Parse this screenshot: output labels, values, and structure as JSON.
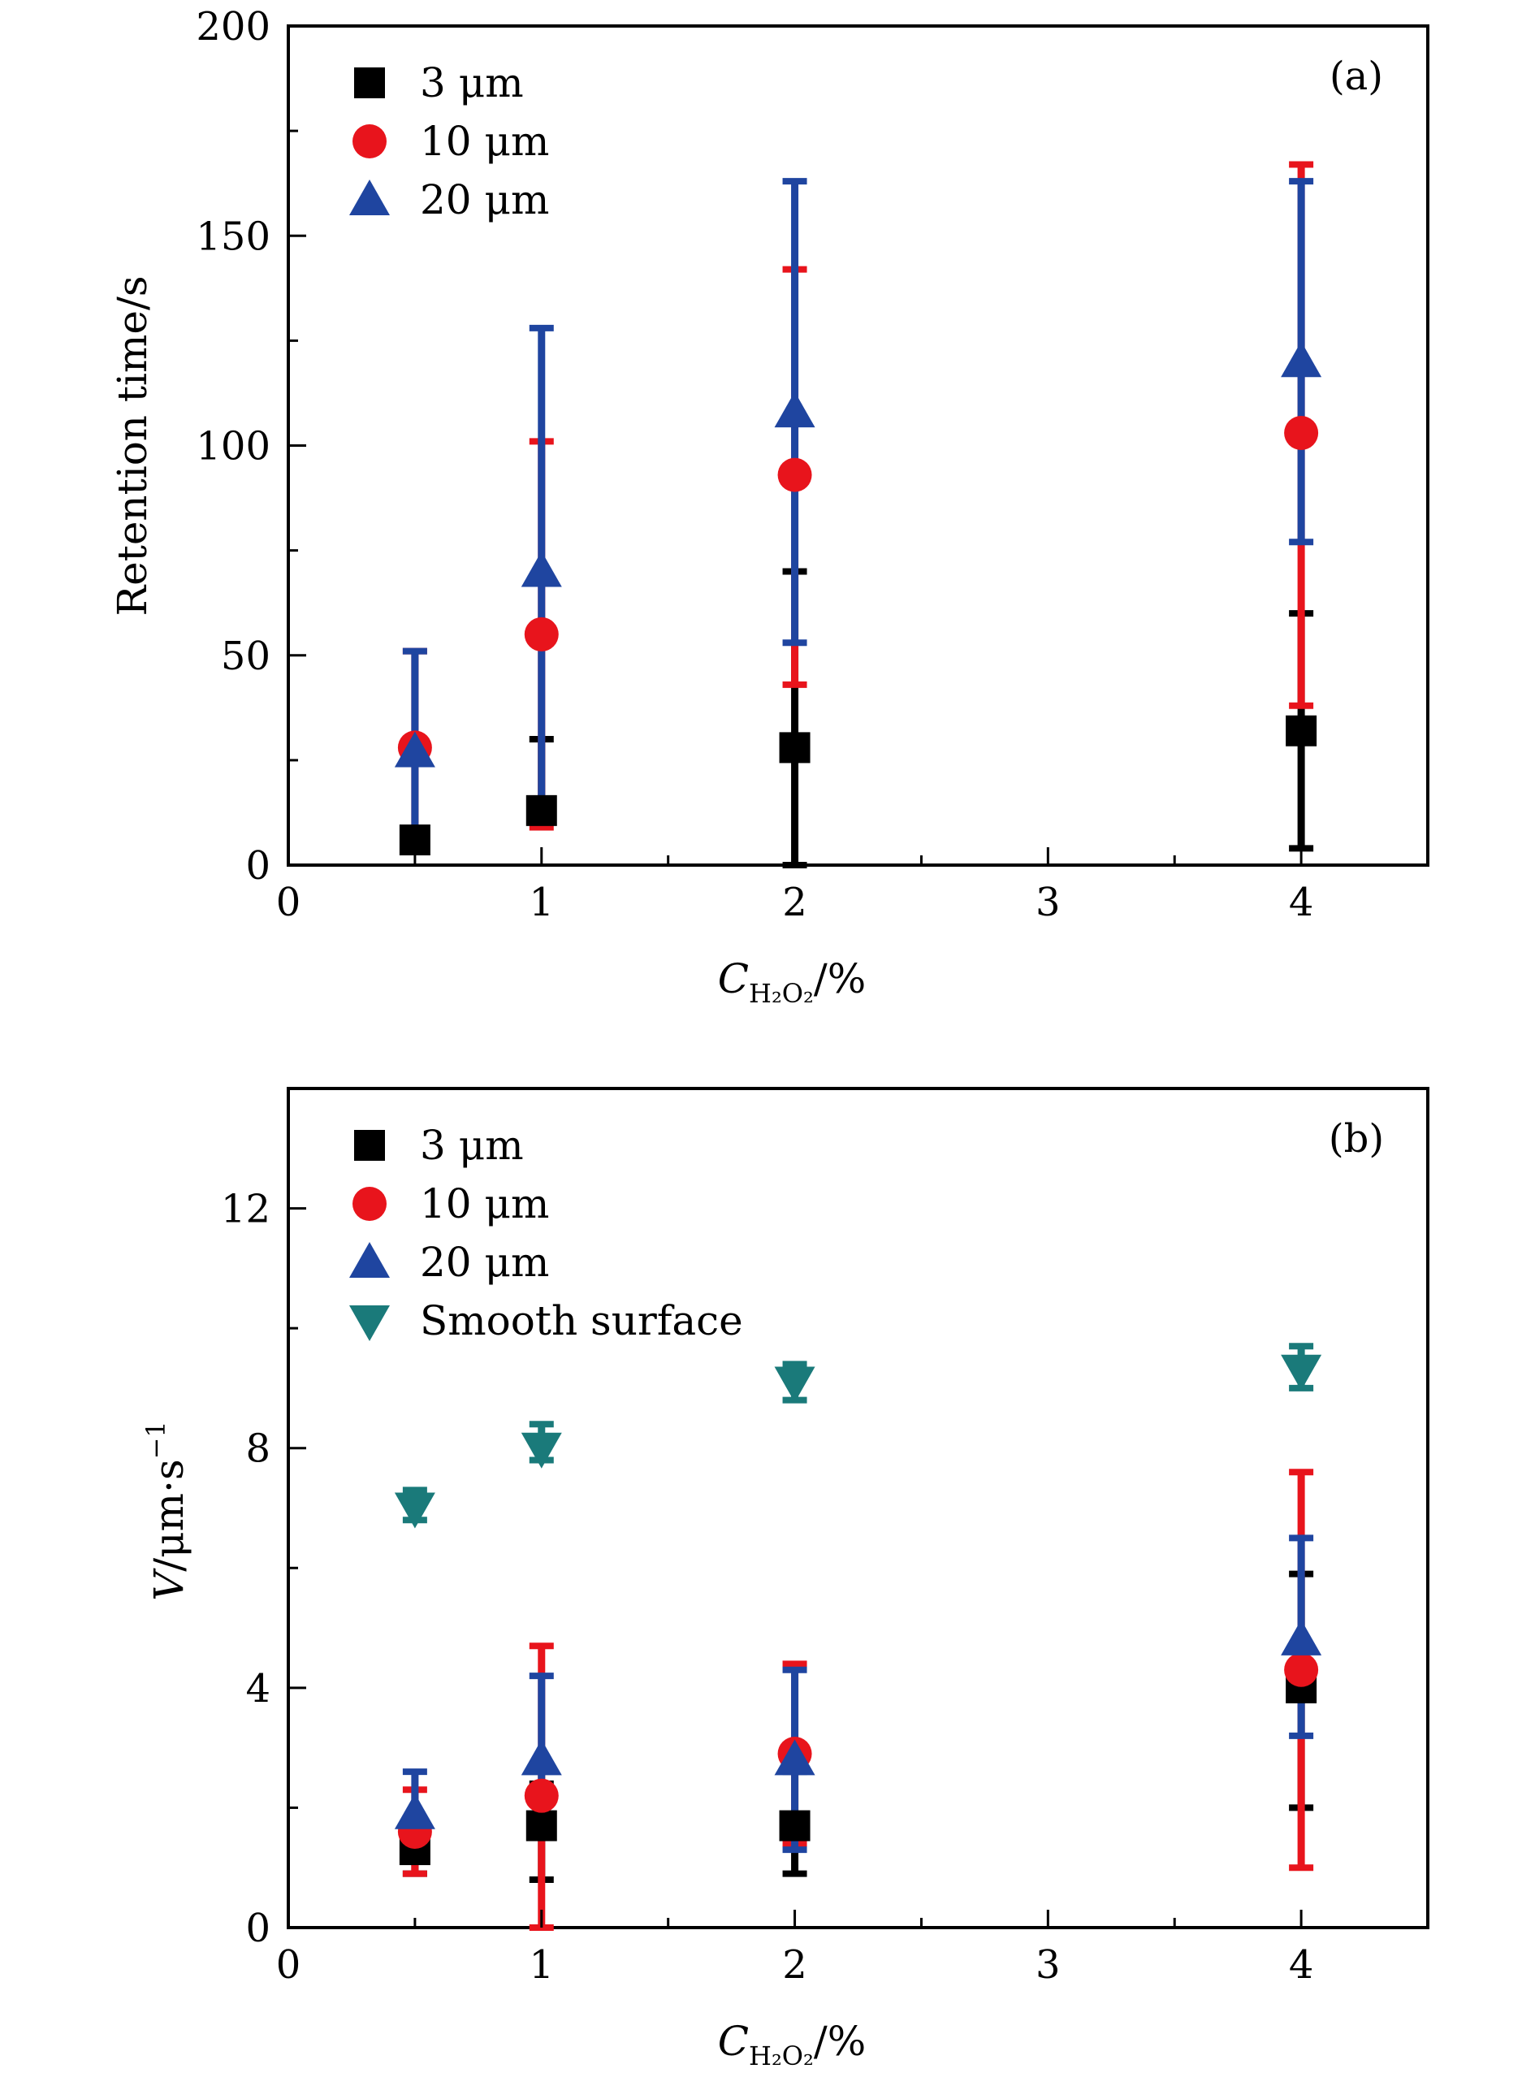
{
  "chart_data": [
    {
      "type": "scatter",
      "panel_label": "(a)",
      "ylabel": "Retention time/s",
      "xlabel_var": "C",
      "xlabel_sub": "H₂O₂",
      "xlabel_unit": "/%",
      "xlim": [
        0,
        4.5
      ],
      "ylim": [
        0,
        200
      ],
      "xticks": [
        0,
        1,
        2,
        3,
        4
      ],
      "yticks": [
        0,
        50,
        100,
        150,
        200
      ],
      "legend_position": "top-left",
      "grid": false,
      "series": [
        {
          "name": "3 μm",
          "marker": "square",
          "color": "#000000",
          "x": [
            0.5,
            1,
            2,
            4
          ],
          "y": [
            6,
            13,
            28,
            32
          ],
          "err_low": [
            4,
            11,
            0,
            4
          ],
          "err_high": [
            8,
            30,
            70,
            60
          ]
        },
        {
          "name": "10 μm",
          "marker": "circle",
          "color": "#e8141c",
          "x": [
            0.5,
            1,
            2,
            4
          ],
          "y": [
            28,
            55,
            93,
            103
          ],
          "err_low": [
            5,
            9,
            43,
            38
          ],
          "err_high": [
            51,
            101,
            142,
            167
          ]
        },
        {
          "name": "20 μm",
          "marker": "triangle-up",
          "color": "#1f45a0",
          "x": [
            0.5,
            1,
            2,
            4
          ],
          "y": [
            27,
            70,
            108,
            120
          ],
          "err_low": [
            4,
            12,
            53,
            77
          ],
          "err_high": [
            51,
            128,
            163,
            163
          ]
        }
      ]
    },
    {
      "type": "scatter",
      "panel_label": "(b)",
      "ylabel_var": "V",
      "ylabel_unit": "/μm·s",
      "ylabel_sup": "−1",
      "xlabel_var": "C",
      "xlabel_sub": "H₂O₂",
      "xlabel_unit": "/%",
      "xlim": [
        0,
        4.5
      ],
      "ylim": [
        0,
        14
      ],
      "xticks": [
        0,
        1,
        2,
        3,
        4
      ],
      "yticks": [
        0,
        4,
        8,
        12
      ],
      "legend_position": "top-left",
      "grid": false,
      "series": [
        {
          "name": "3 μm",
          "marker": "square",
          "color": "#000000",
          "x": [
            0.5,
            1,
            2,
            4
          ],
          "y": [
            1.3,
            1.7,
            1.7,
            4.0
          ],
          "err_low": [
            0.9,
            0.8,
            0.9,
            2.0
          ],
          "err_high": [
            1.8,
            2.4,
            2.6,
            5.9
          ]
        },
        {
          "name": "10 μm",
          "marker": "circle",
          "color": "#e8141c",
          "x": [
            0.5,
            1,
            2,
            4
          ],
          "y": [
            1.6,
            2.2,
            2.9,
            4.3
          ],
          "err_low": [
            0.9,
            0.0,
            1.4,
            1.0
          ],
          "err_high": [
            2.3,
            4.7,
            4.4,
            7.6
          ]
        },
        {
          "name": "20 μm",
          "marker": "triangle-up",
          "color": "#1f45a0",
          "x": [
            0.5,
            1,
            2,
            4
          ],
          "y": [
            1.9,
            2.8,
            2.8,
            4.8
          ],
          "err_low": [
            1.2,
            1.5,
            1.3,
            3.2
          ],
          "err_high": [
            2.6,
            4.2,
            4.3,
            6.5
          ]
        },
        {
          "name": "Smooth surface",
          "marker": "triangle-down",
          "color": "#1a7a7a",
          "x": [
            0.5,
            1,
            2,
            4
          ],
          "y": [
            7.0,
            8.0,
            9.1,
            9.3
          ],
          "err_low": [
            6.8,
            7.8,
            8.8,
            9.0
          ],
          "err_high": [
            7.3,
            8.4,
            9.4,
            9.7
          ]
        }
      ]
    }
  ]
}
